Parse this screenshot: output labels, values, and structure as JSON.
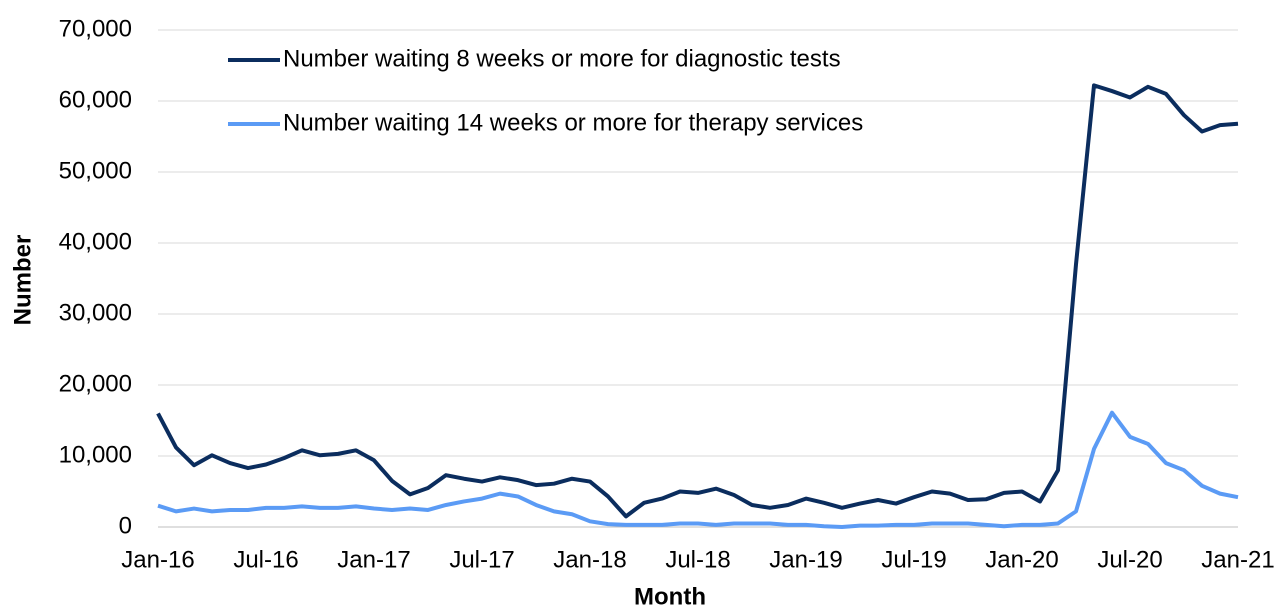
{
  "chart_data": {
    "type": "line",
    "y_label": "Number",
    "x_label": "Month",
    "categories": [
      "Jan-16",
      null,
      null,
      null,
      null,
      null,
      "Jul-16",
      null,
      null,
      null,
      null,
      null,
      "Jan-17",
      null,
      null,
      null,
      null,
      null,
      "Jul-17",
      null,
      null,
      null,
      null,
      null,
      "Jan-18",
      null,
      null,
      null,
      null,
      null,
      "Jul-18",
      null,
      null,
      null,
      null,
      null,
      "Jan-19",
      null,
      null,
      null,
      null,
      null,
      "Jul-19",
      null,
      null,
      null,
      null,
      null,
      "Jan-20",
      null,
      null,
      null,
      null,
      null,
      "Jul-20",
      null,
      null,
      null,
      null,
      null,
      "Jan-21"
    ],
    "series": [
      {
        "name": "Number waiting 8 weeks or more for diagnostic tests",
        "color": "#0b2d5e",
        "values": [
          16000,
          11200,
          8700,
          10100,
          9000,
          8300,
          8800,
          9700,
          10800,
          10100,
          10300,
          10800,
          9400,
          6500,
          4600,
          5500,
          7300,
          6800,
          6400,
          7000,
          6600,
          5900,
          6100,
          6800,
          6400,
          4300,
          1500,
          3400,
          4000,
          5000,
          4800,
          5400,
          4500,
          3100,
          2700,
          3100,
          4000,
          3400,
          2700,
          3300,
          3800,
          3300,
          4200,
          5000,
          4700,
          3800,
          3900,
          4800,
          5000,
          3600,
          8000,
          37000,
          62200,
          61400,
          60500,
          62000,
          61000,
          58000,
          55700,
          56600,
          56800
        ]
      },
      {
        "name": "Number waiting 14 weeks or more for therapy services",
        "color": "#5b9bf5",
        "values": [
          3000,
          2200,
          2600,
          2200,
          2400,
          2400,
          2700,
          2700,
          2900,
          2700,
          2700,
          2900,
          2600,
          2400,
          2600,
          2400,
          3100,
          3600,
          4000,
          4700,
          4300,
          3100,
          2200,
          1800,
          800,
          400,
          300,
          300,
          300,
          500,
          500,
          300,
          500,
          500,
          500,
          300,
          300,
          100,
          0,
          200,
          200,
          300,
          300,
          500,
          500,
          500,
          300,
          100,
          300,
          300,
          500,
          2200,
          11000,
          16100,
          12700,
          11700,
          9000,
          8000,
          5800,
          4700,
          4200
        ]
      }
    ],
    "ylim": [
      0,
      70000
    ],
    "yticks": [
      0,
      {
        "value": 10000,
        "label": "10,000"
      },
      {
        "value": 20000,
        "label": "20,000"
      },
      {
        "value": 30000,
        "label": "30,000"
      },
      {
        "value": 40000,
        "label": "40,000"
      },
      {
        "value": 50000,
        "label": "50,000"
      },
      {
        "value": 60000,
        "label": "60,000"
      },
      {
        "value": 70000,
        "label": "70,000"
      }
    ],
    "grid": true,
    "legend": "upper-left"
  }
}
